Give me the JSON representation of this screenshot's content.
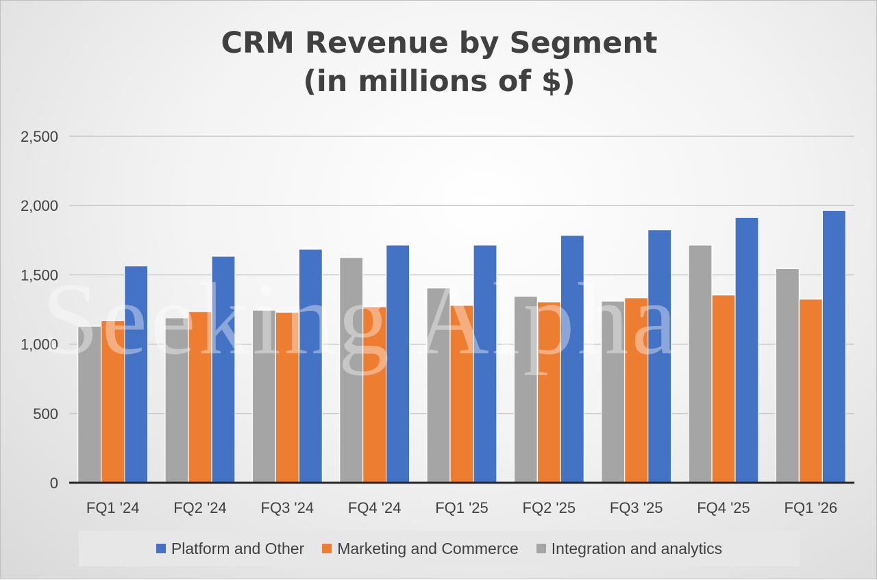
{
  "chart_data": {
    "type": "bar",
    "title": "CRM Revenue by Segment",
    "subtitle": "(in millions of $)",
    "categories": [
      "FQ1 '24",
      "FQ2 '24",
      "FQ3 '24",
      "FQ4 '24",
      "FQ1 '25",
      "FQ2 '25",
      "FQ3 '25",
      "FQ4 '25",
      "FQ1 '26"
    ],
    "series": [
      {
        "name": "Integration and analytics",
        "color": "#a5a5a5",
        "values": [
          1130,
          1190,
          1245,
          1625,
          1405,
          1345,
          1310,
          1715,
          1545
        ]
      },
      {
        "name": "Marketing and Commerce",
        "color": "#ed7d31",
        "values": [
          1170,
          1235,
          1230,
          1270,
          1280,
          1305,
          1335,
          1355,
          1325
        ]
      },
      {
        "name": "Platform and Other",
        "color": "#4472c4",
        "values": [
          1565,
          1635,
          1685,
          1715,
          1715,
          1785,
          1825,
          1915,
          1965
        ]
      }
    ],
    "legend_order": [
      "Platform and Other",
      "Marketing and Commerce",
      "Integration and analytics"
    ],
    "ylim": [
      0,
      2500
    ],
    "yticks": [
      0,
      500,
      1000,
      1500,
      2000,
      2500
    ],
    "ytick_labels": [
      "0",
      "500",
      "1,000",
      "1,500",
      "2,000",
      "2,500"
    ],
    "grid": true,
    "legend_position": "bottom",
    "xlabel": "",
    "ylabel": ""
  },
  "watermark": "Seeking Alpha"
}
